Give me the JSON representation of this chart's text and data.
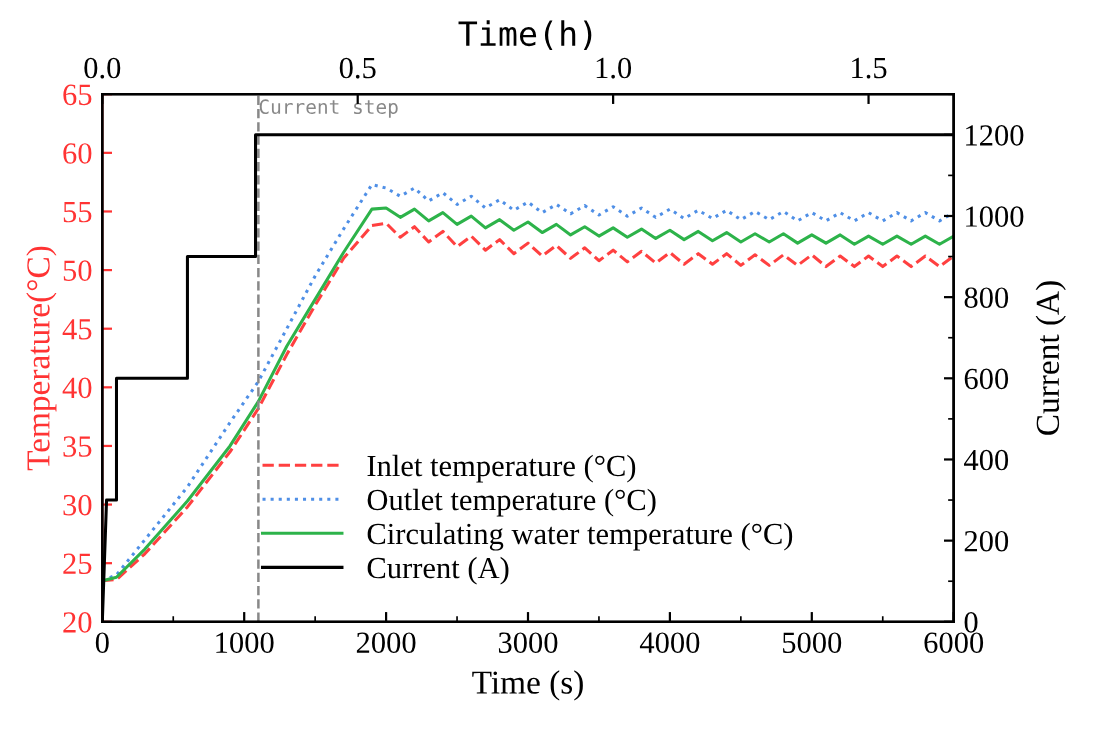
{
  "chart_data": {
    "type": "line",
    "xlabel": "Time (s)",
    "ylabel": "Temperature(°C)",
    "y2label": "Current (A)",
    "x2label": "Time(h)",
    "xlim": [
      0,
      6000
    ],
    "xticks": [
      0,
      1000,
      2000,
      3000,
      4000,
      5000,
      6000
    ],
    "ylim": [
      20,
      65
    ],
    "yticks": [
      20,
      25,
      30,
      35,
      40,
      45,
      50,
      55,
      60,
      65
    ],
    "y2lim": [
      0,
      1300
    ],
    "y2ticks": [
      0,
      200,
      400,
      600,
      800,
      1000,
      1200
    ],
    "x2lim": [
      0,
      1.6667
    ],
    "x2ticks": [
      {
        "value": 0,
        "label": "0.0"
      },
      {
        "value": 0.5,
        "label": "0.5"
      },
      {
        "value": 1.0,
        "label": "1.0"
      },
      {
        "value": 1.5,
        "label": "1.5"
      }
    ],
    "x": [
      0,
      100,
      300,
      600,
      900,
      1100,
      1300,
      1500,
      1700,
      1900,
      2000,
      2100,
      2200,
      2300,
      2400,
      2500,
      2600,
      2700,
      2800,
      2900,
      3000,
      3100,
      3200,
      3300,
      3400,
      3500,
      3600,
      3700,
      3800,
      3900,
      4000,
      4100,
      4200,
      4300,
      4400,
      4500,
      4600,
      4700,
      4800,
      4900,
      5000,
      5100,
      5200,
      5300,
      5400,
      5500,
      5600,
      5700,
      5800,
      5900,
      6000
    ],
    "series": [
      {
        "name": "Inlet temperature (°C)",
        "color": "#ff4040",
        "line_style": "dashed",
        "values": [
          23.5,
          23.6,
          25.8,
          29.8,
          34.5,
          38.2,
          42.8,
          47,
          51,
          53.8,
          54.0,
          52.8,
          53.7,
          52.4,
          53.3,
          52.0,
          52.9,
          51.7,
          52.6,
          51.4,
          52.3,
          51.2,
          52.1,
          51.0,
          51.9,
          50.8,
          51.7,
          50.7,
          51.6,
          50.6,
          51.5,
          50.5,
          51.4,
          50.5,
          51.4,
          50.4,
          51.3,
          50.4,
          51.3,
          50.4,
          51.3,
          50.3,
          51.2,
          50.3,
          51.2,
          50.3,
          51.2,
          50.3,
          51.2,
          50.3,
          51.2
        ]
      },
      {
        "name": "Outlet temperature (°C)",
        "color": "#4f8fe6",
        "line_style": "dotted",
        "values": [
          23.5,
          24,
          27,
          31.5,
          37,
          40.5,
          45,
          49.5,
          53.5,
          57.3,
          57.0,
          56.3,
          57.0,
          55.9,
          56.6,
          55.6,
          56.3,
          55.3,
          56.0,
          55.1,
          55.8,
          54.9,
          55.6,
          54.8,
          55.5,
          54.7,
          55.4,
          54.6,
          55.3,
          54.5,
          55.2,
          54.4,
          55.1,
          54.4,
          55.1,
          54.3,
          55.0,
          54.3,
          55.0,
          54.2,
          54.9,
          54.2,
          54.9,
          54.2,
          54.9,
          54.2,
          54.9,
          54.2,
          54.9,
          54.2,
          54.9
        ]
      },
      {
        "name": "Circulating water temperature (°C)",
        "color": "#2db34a",
        "line_style": "solid",
        "values": [
          23.5,
          23.8,
          26.2,
          30.3,
          35,
          38.8,
          43.5,
          47.5,
          51.5,
          55.2,
          55.3,
          54.5,
          55.2,
          54.2,
          54.9,
          53.9,
          54.6,
          53.6,
          54.3,
          53.4,
          54.1,
          53.2,
          53.9,
          53.0,
          53.7,
          52.9,
          53.6,
          52.8,
          53.5,
          52.7,
          53.4,
          52.6,
          53.3,
          52.5,
          53.2,
          52.4,
          53.1,
          52.4,
          53.1,
          52.3,
          53.0,
          52.3,
          53.0,
          52.2,
          52.9,
          52.2,
          52.9,
          52.2,
          52.9,
          52.2,
          52.9
        ]
      },
      {
        "name": "Current (A)",
        "color": "#000000",
        "line_style": "solid",
        "axis": "y2",
        "x": [
          0,
          30,
          100,
          100,
          600,
          600,
          1080,
          1080,
          6000
        ],
        "values": [
          0,
          300,
          300,
          600,
          600,
          900,
          900,
          1200,
          1200
        ]
      }
    ],
    "ref_lines": [
      {
        "axis": "x",
        "value": 1100,
        "label": "Current step",
        "color": "#888888",
        "line_style": "dashed"
      }
    ],
    "legend": "bottom",
    "grid": false,
    "marker": "none"
  }
}
